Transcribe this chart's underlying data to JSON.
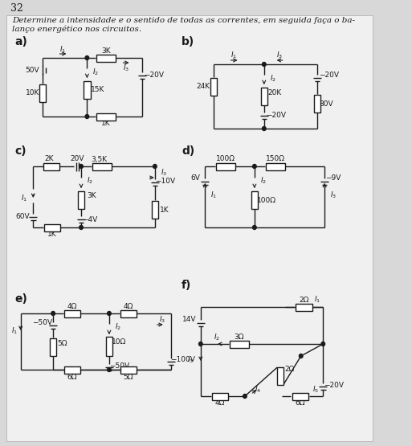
{
  "page_number": "32",
  "title_line1": "Determine a intensidade e o sentido de todas as correntes, em seguida faça o ba-",
  "title_line2": "lanço energético nos circuitos.",
  "bg_color": "#d8d8d8",
  "box_color": "#f0f0f0",
  "line_color": "#1a1a1a"
}
